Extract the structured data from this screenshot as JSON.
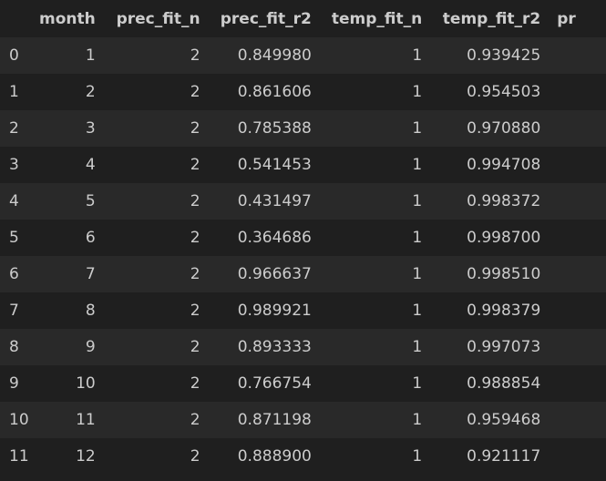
{
  "table": {
    "columns": [
      "month",
      "prec_fit_n",
      "prec_fit_r2",
      "temp_fit_n",
      "temp_fit_r2",
      "pr"
    ],
    "rows": [
      {
        "index": "0",
        "month": "1",
        "prec_fit_n": "2",
        "prec_fit_r2": "0.849980",
        "temp_fit_n": "1",
        "temp_fit_r2": "0.939425"
      },
      {
        "index": "1",
        "month": "2",
        "prec_fit_n": "2",
        "prec_fit_r2": "0.861606",
        "temp_fit_n": "1",
        "temp_fit_r2": "0.954503"
      },
      {
        "index": "2",
        "month": "3",
        "prec_fit_n": "2",
        "prec_fit_r2": "0.785388",
        "temp_fit_n": "1",
        "temp_fit_r2": "0.970880"
      },
      {
        "index": "3",
        "month": "4",
        "prec_fit_n": "2",
        "prec_fit_r2": "0.541453",
        "temp_fit_n": "1",
        "temp_fit_r2": "0.994708"
      },
      {
        "index": "4",
        "month": "5",
        "prec_fit_n": "2",
        "prec_fit_r2": "0.431497",
        "temp_fit_n": "1",
        "temp_fit_r2": "0.998372"
      },
      {
        "index": "5",
        "month": "6",
        "prec_fit_n": "2",
        "prec_fit_r2": "0.364686",
        "temp_fit_n": "1",
        "temp_fit_r2": "0.998700"
      },
      {
        "index": "6",
        "month": "7",
        "prec_fit_n": "2",
        "prec_fit_r2": "0.966637",
        "temp_fit_n": "1",
        "temp_fit_r2": "0.998510"
      },
      {
        "index": "7",
        "month": "8",
        "prec_fit_n": "2",
        "prec_fit_r2": "0.989921",
        "temp_fit_n": "1",
        "temp_fit_r2": "0.998379"
      },
      {
        "index": "8",
        "month": "9",
        "prec_fit_n": "2",
        "prec_fit_r2": "0.893333",
        "temp_fit_n": "1",
        "temp_fit_r2": "0.997073"
      },
      {
        "index": "9",
        "month": "10",
        "prec_fit_n": "2",
        "prec_fit_r2": "0.766754",
        "temp_fit_n": "1",
        "temp_fit_r2": "0.988854"
      },
      {
        "index": "10",
        "month": "11",
        "prec_fit_n": "2",
        "prec_fit_r2": "0.871198",
        "temp_fit_n": "1",
        "temp_fit_r2": "0.959468"
      },
      {
        "index": "11",
        "month": "12",
        "prec_fit_n": "2",
        "prec_fit_r2": "0.888900",
        "temp_fit_n": "1",
        "temp_fit_r2": "0.921117"
      }
    ]
  }
}
